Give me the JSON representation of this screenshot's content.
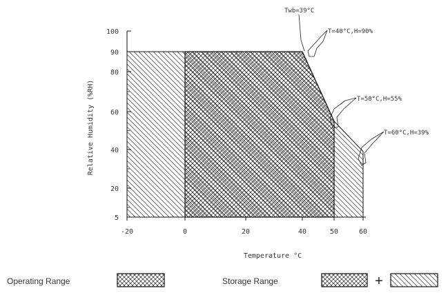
{
  "chart_data": {
    "type": "area",
    "xlabel": "Temperature °C",
    "ylabel": "Relative Humidity (%RH)",
    "xlim": [
      -20,
      60
    ],
    "ylim": [
      5,
      100
    ],
    "x_ticks": [
      "-20",
      "0",
      "20",
      "40",
      "50",
      "60"
    ],
    "x_tick_values": [
      -20,
      0,
      20,
      40,
      50,
      60
    ],
    "y_ticks": [
      "5",
      "20",
      "40",
      "60",
      "80",
      "90",
      "100"
    ],
    "y_tick_values": [
      5,
      20,
      40,
      60,
      80,
      90,
      100
    ],
    "operating_range": {
      "boundary": [
        [
          0,
          5
        ],
        [
          0,
          90
        ],
        [
          40,
          90
        ],
        [
          50,
          55
        ],
        [
          50,
          5
        ]
      ]
    },
    "storage_range": {
      "boundary": [
        [
          -20,
          5
        ],
        [
          -20,
          90
        ],
        [
          40,
          90
        ],
        [
          50,
          55
        ],
        [
          60,
          39
        ],
        [
          60,
          5
        ]
      ]
    },
    "annotations": [
      {
        "text": "Twb=39°C",
        "x": 40,
        "y": 90
      },
      {
        "text": "T=40°C,H=90%",
        "x": 40,
        "y": 90
      },
      {
        "text": "T=50°C,H=55%",
        "x": 50,
        "y": 55
      },
      {
        "text": "T=60°C,H=39%",
        "x": 60,
        "y": 39
      }
    ],
    "legend": {
      "placement": "bottom",
      "items": [
        {
          "label": "Operating Range",
          "patterns": [
            "crosshatch"
          ]
        },
        {
          "label": "Storage Range",
          "patterns": [
            "crosshatch",
            "diagonal"
          ],
          "joiner": "+"
        }
      ]
    },
    "grid": false
  }
}
